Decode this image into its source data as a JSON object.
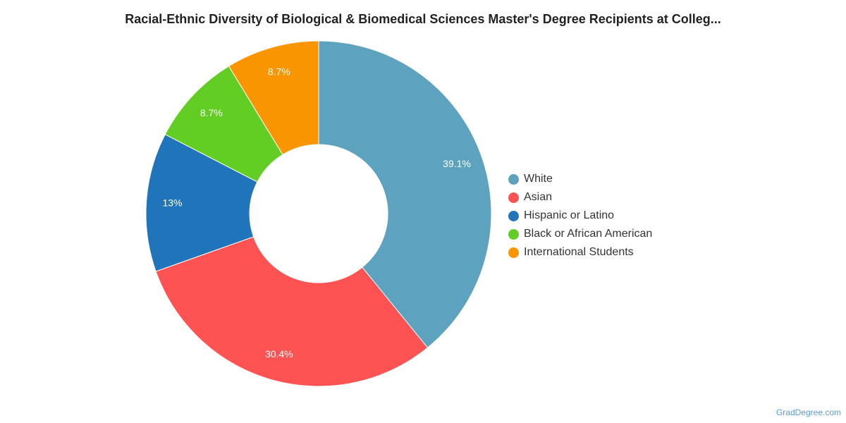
{
  "chart_data": {
    "type": "pie",
    "title": "Racial-Ethnic Diversity of Biological & Biomedical Sciences Master's Degree Recipients at Colleg...",
    "donut": true,
    "legend_position": "right",
    "slices": [
      {
        "name": "White",
        "value": 39.1,
        "label": "39.1%",
        "color": "#5da2be"
      },
      {
        "name": "Asian",
        "value": 30.4,
        "label": "30.4%",
        "color": "#fe5253"
      },
      {
        "name": "Hispanic or Latino",
        "value": 13.0,
        "label": "13%",
        "color": "#2074ba"
      },
      {
        "name": "Black or African American",
        "value": 8.7,
        "label": "8.7%",
        "color": "#62cd23"
      },
      {
        "name": "International Students",
        "value": 8.7,
        "label": "8.7%",
        "color": "#f99500"
      }
    ]
  },
  "source": "GradDegree.com"
}
